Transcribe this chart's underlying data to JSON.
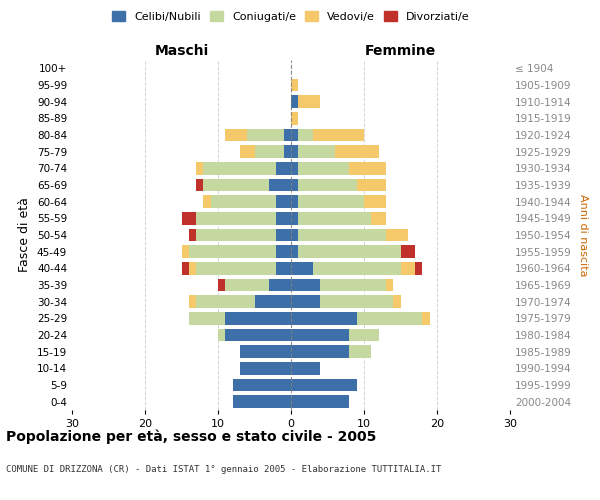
{
  "age_groups": [
    "0-4",
    "5-9",
    "10-14",
    "15-19",
    "20-24",
    "25-29",
    "30-34",
    "35-39",
    "40-44",
    "45-49",
    "50-54",
    "55-59",
    "60-64",
    "65-69",
    "70-74",
    "75-79",
    "80-84",
    "85-89",
    "90-94",
    "95-99",
    "100+"
  ],
  "birth_years": [
    "2000-2004",
    "1995-1999",
    "1990-1994",
    "1985-1989",
    "1980-1984",
    "1975-1979",
    "1970-1974",
    "1965-1969",
    "1960-1964",
    "1955-1959",
    "1950-1954",
    "1945-1949",
    "1940-1944",
    "1935-1939",
    "1930-1934",
    "1925-1929",
    "1920-1924",
    "1915-1919",
    "1910-1914",
    "1905-1909",
    "≤ 1904"
  ],
  "maschi": {
    "celibi": [
      8,
      8,
      7,
      7,
      9,
      9,
      5,
      3,
      2,
      2,
      2,
      2,
      2,
      3,
      2,
      1,
      1,
      0,
      0,
      0,
      0
    ],
    "coniugati": [
      0,
      0,
      0,
      0,
      1,
      5,
      8,
      6,
      11,
      12,
      11,
      11,
      9,
      9,
      10,
      4,
      5,
      0,
      0,
      0,
      0
    ],
    "vedovi": [
      0,
      0,
      0,
      0,
      0,
      0,
      1,
      0,
      1,
      1,
      0,
      0,
      1,
      0,
      1,
      2,
      3,
      0,
      0,
      0,
      0
    ],
    "divorziati": [
      0,
      0,
      0,
      0,
      0,
      0,
      0,
      1,
      1,
      0,
      1,
      2,
      0,
      1,
      0,
      0,
      0,
      0,
      0,
      0,
      0
    ]
  },
  "femmine": {
    "nubili": [
      8,
      9,
      4,
      8,
      8,
      9,
      4,
      4,
      3,
      1,
      1,
      1,
      1,
      1,
      1,
      1,
      1,
      0,
      1,
      0,
      0
    ],
    "coniugate": [
      0,
      0,
      0,
      3,
      4,
      9,
      10,
      9,
      12,
      14,
      12,
      10,
      9,
      8,
      7,
      5,
      2,
      0,
      0,
      0,
      0
    ],
    "vedove": [
      0,
      0,
      0,
      0,
      0,
      1,
      1,
      1,
      2,
      0,
      3,
      2,
      3,
      4,
      5,
      6,
      7,
      1,
      3,
      1,
      0
    ],
    "divorziate": [
      0,
      0,
      0,
      0,
      0,
      0,
      0,
      0,
      1,
      2,
      0,
      0,
      0,
      0,
      0,
      0,
      0,
      0,
      0,
      0,
      0
    ]
  },
  "colors": {
    "celibi": "#3d6fa8",
    "coniugati": "#c5d8a0",
    "vedovi": "#f5c96a",
    "divorziati": "#c0312b"
  },
  "xlim": 30,
  "title": "Popolazione per età, sesso e stato civile - 2005",
  "subtitle": "COMUNE DI DRIZZONA (CR) - Dati ISTAT 1° gennaio 2005 - Elaborazione TUTTITALIA.IT",
  "xlabel_left": "Maschi",
  "xlabel_right": "Femmine",
  "ylabel": "Fasce di età",
  "ylabel_right": "Anni di nascita"
}
